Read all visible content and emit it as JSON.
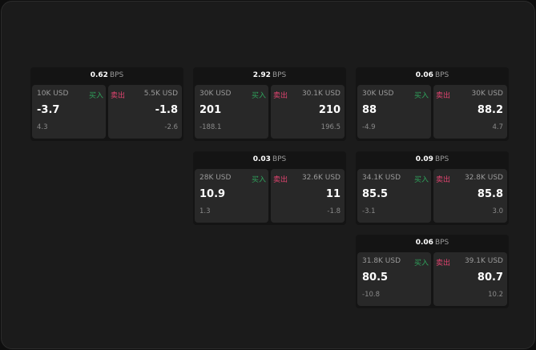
{
  "colors": {
    "buy": "#2fa35c",
    "sell": "#e0436f",
    "background": "#1b1b1b",
    "card": "#282828"
  },
  "labels": {
    "buy": "买入",
    "sell": "卖出",
    "unit": "BPS"
  },
  "panels": [
    {
      "spread": "0.62",
      "bid": {
        "size": "10K USD",
        "price": "-3.7",
        "change": "4.3"
      },
      "ask": {
        "size": "5.5K USD",
        "price": "-1.8",
        "change": "-2.6"
      }
    },
    {
      "spread": "2.92",
      "bid": {
        "size": "30K USD",
        "price": "201",
        "change": "-188.1"
      },
      "ask": {
        "size": "30.1K USD",
        "price": "210",
        "change": "196.5"
      }
    },
    {
      "spread": "0.06",
      "bid": {
        "size": "30K USD",
        "price": "88",
        "change": "-4.9"
      },
      "ask": {
        "size": "30K USD",
        "price": "88.2",
        "change": "4.7"
      }
    },
    {
      "spread": "0.03",
      "bid": {
        "size": "28K USD",
        "price": "10.9",
        "change": "1.3"
      },
      "ask": {
        "size": "32.6K USD",
        "price": "11",
        "change": "-1.8"
      }
    },
    {
      "spread": "0.09",
      "bid": {
        "size": "34.1K USD",
        "price": "85.5",
        "change": "-3.1"
      },
      "ask": {
        "size": "32.8K USD",
        "price": "85.8",
        "change": "3.0"
      }
    },
    {
      "spread": "0.06",
      "bid": {
        "size": "31.8K USD",
        "price": "80.5",
        "change": "-10.8"
      },
      "ask": {
        "size": "39.1K USD",
        "price": "80.7",
        "change": "10.2"
      }
    }
  ]
}
